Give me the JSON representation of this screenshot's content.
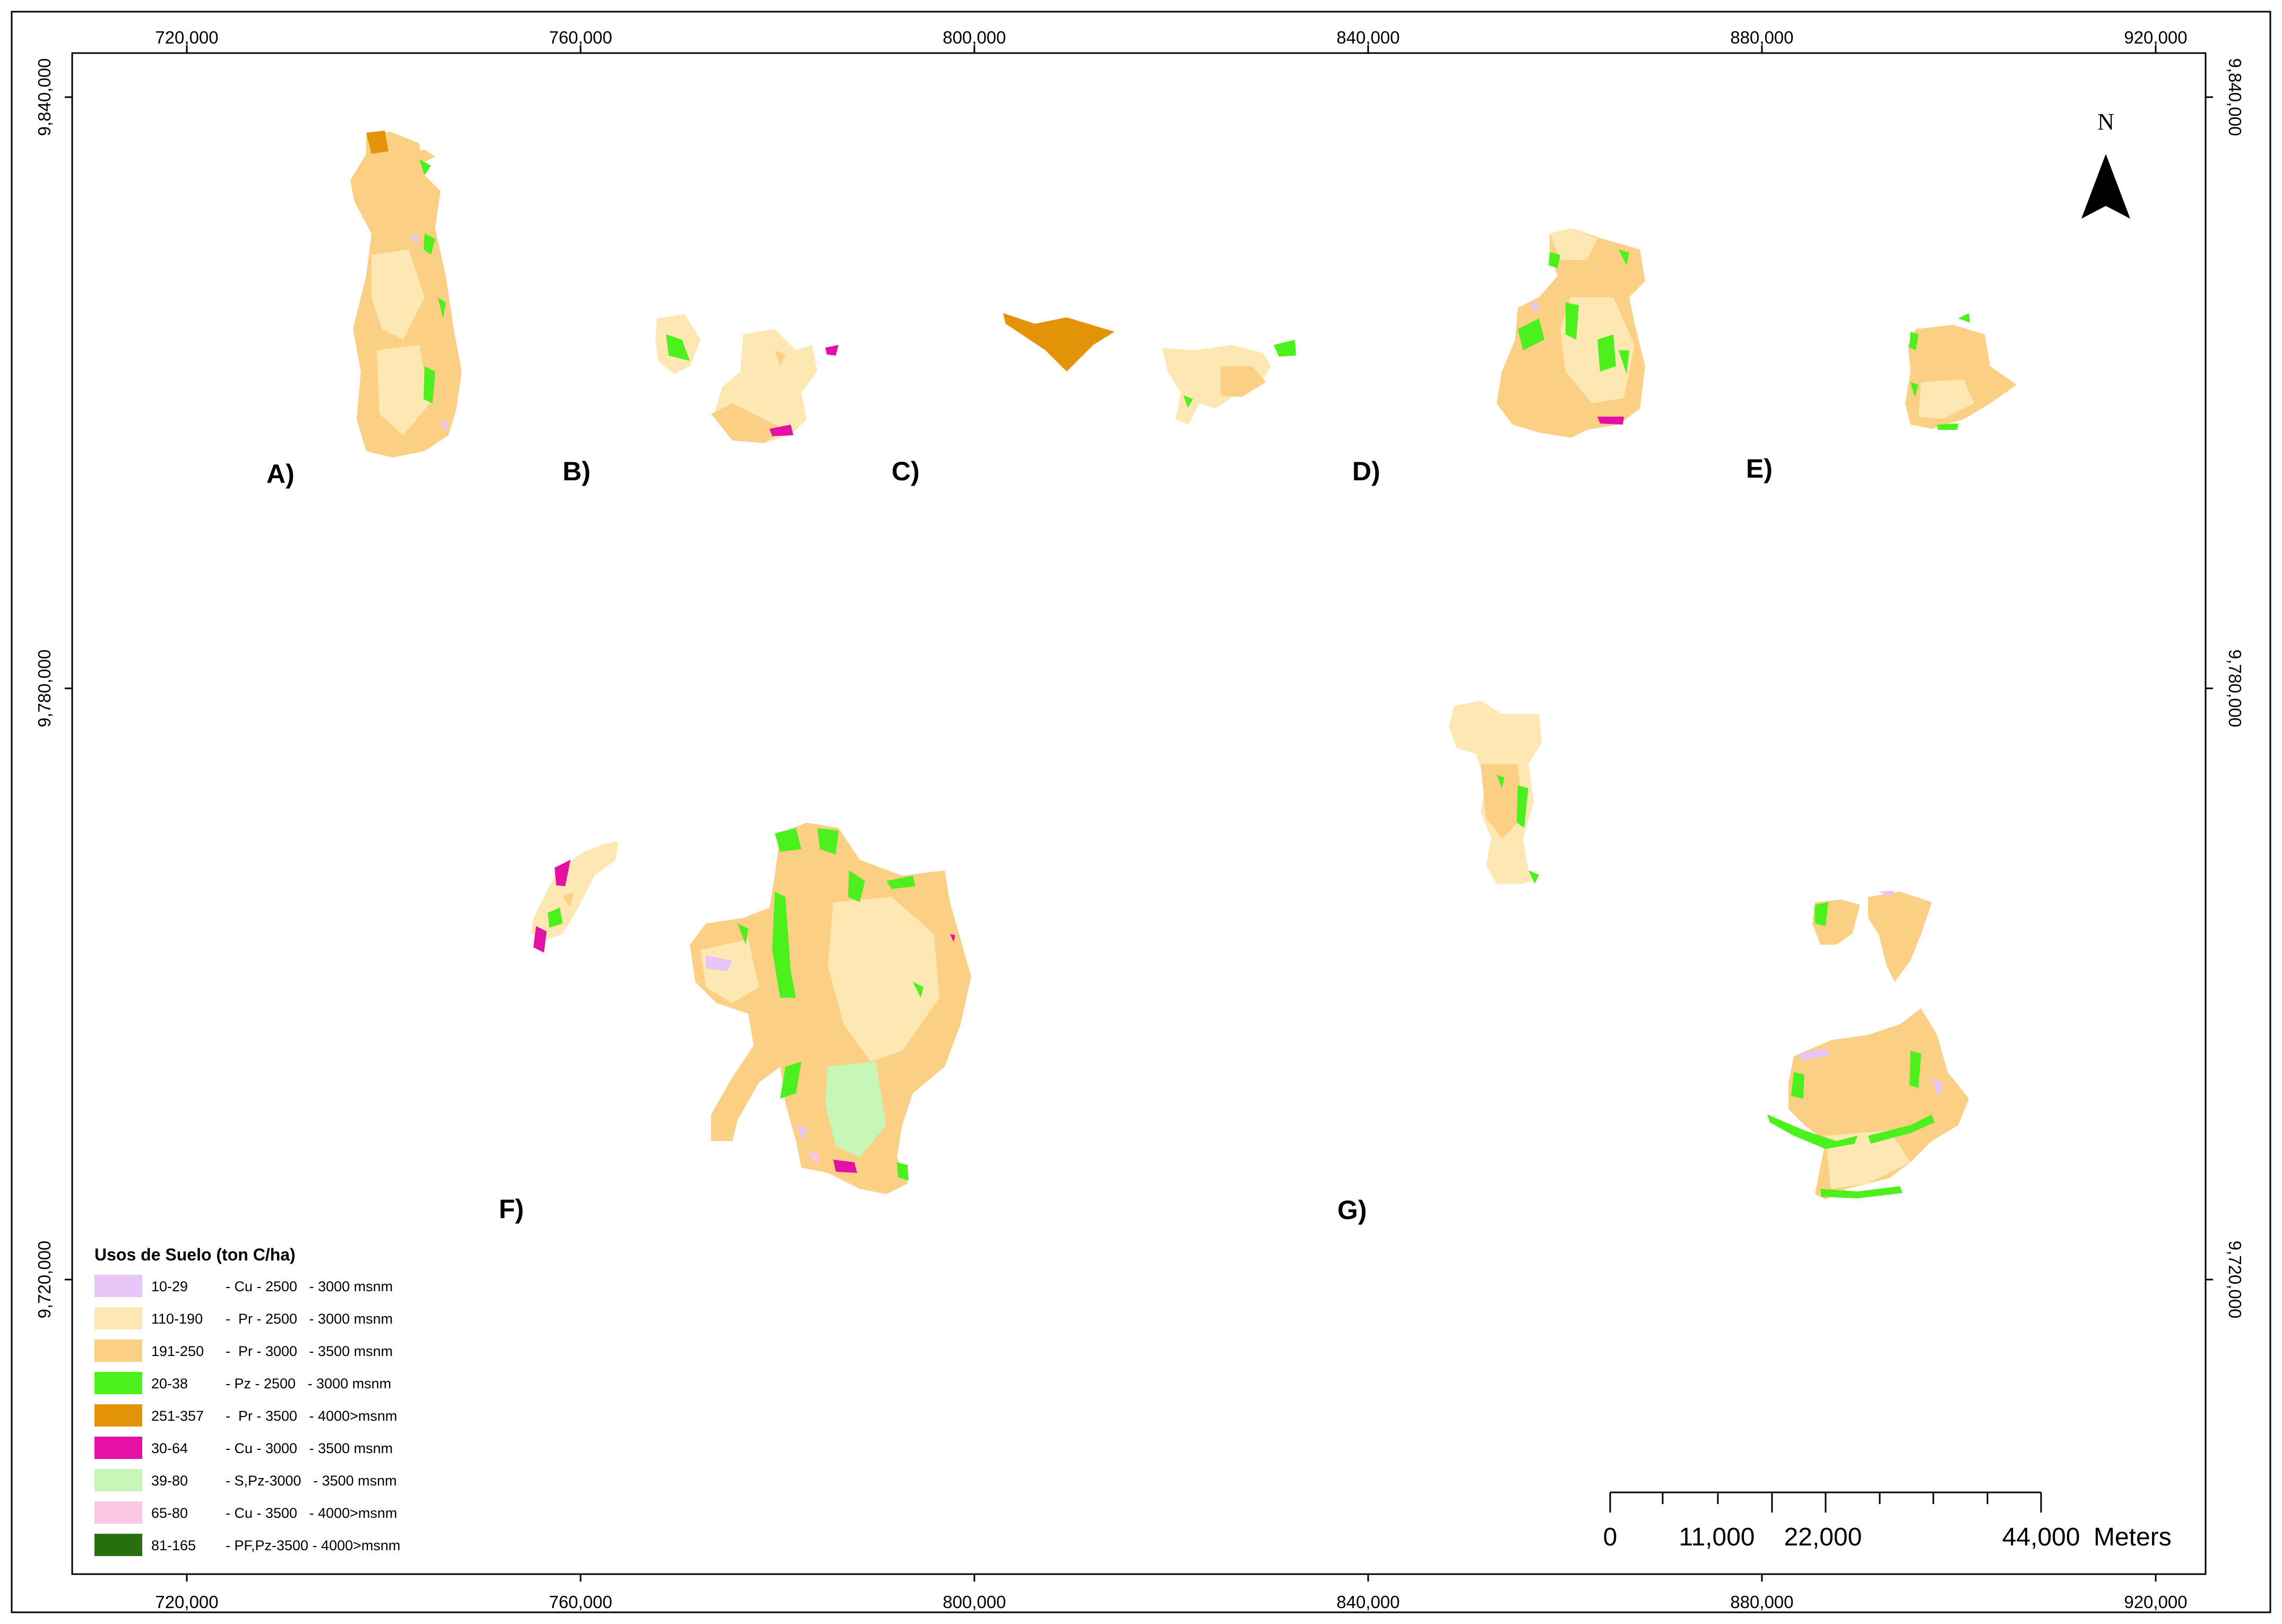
{
  "map": {
    "x_ticks": [
      "720,000",
      "760,000",
      "800,000",
      "840,000",
      "880,000",
      "920,000"
    ],
    "y_ticks": [
      "9,840,000",
      "9,780,000",
      "9,720,000"
    ],
    "panels": [
      "A)",
      "B)",
      "C)",
      "D)",
      "E)",
      "F)",
      "G)"
    ],
    "north_label": "N"
  },
  "legend": {
    "title": "Usos de Suelo (ton C/ha)",
    "items": [
      {
        "range": "10-29",
        "desc": "- Cu - 2500   - 3000 msnm",
        "color": "#e5c6f7"
      },
      {
        "range": "110-190",
        "desc": "-  Pr - 2500   - 3000 msnm",
        "color": "#fde8b4"
      },
      {
        "range": "191-250",
        "desc": "-  Pr - 3000   - 3500 msnm",
        "color": "#fbd085"
      },
      {
        "range": "20-38",
        "desc": "- Pz - 2500   - 3000 msnm",
        "color": "#4cf01c"
      },
      {
        "range": "251-357",
        "desc": "-  Pr - 3500   - 4000>msnm",
        "color": "#e39308"
      },
      {
        "range": "30-64",
        "desc": "- Cu - 3000   - 3500 msnm",
        "color": "#e511a6"
      },
      {
        "range": "39-80",
        "desc": "- S,Pz-3000   - 3500 msnm",
        "color": "#c7f7b8"
      },
      {
        "range": "65-80",
        "desc": "- Cu - 3500   - 4000>msnm",
        "color": "#fac8e4"
      },
      {
        "range": "81-165",
        "desc": "- PF,Pz-3500 - 4000>msnm",
        "color": "#286f0f"
      }
    ]
  },
  "scale": {
    "labels": [
      "0",
      "11,000",
      "22,000",
      "44,000"
    ],
    "unit": "Meters"
  }
}
